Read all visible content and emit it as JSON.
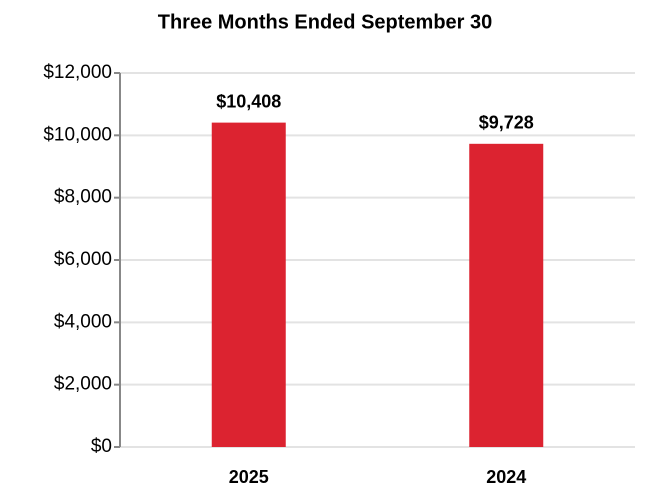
{
  "chart_data": {
    "type": "bar",
    "title": "Three Months Ended September 30",
    "categories": [
      "2025",
      "2024"
    ],
    "values": [
      10408,
      9728
    ],
    "value_labels": [
      "$10,408",
      "$9,728"
    ],
    "color": "#dc2330",
    "ylim": [
      0,
      12000
    ],
    "yticks": [
      {
        "value": 0,
        "label": "$0"
      },
      {
        "value": 2000,
        "label": "$2,000"
      },
      {
        "value": 4000,
        "label": "$4,000"
      },
      {
        "value": 6000,
        "label": "$6,000"
      },
      {
        "value": 8000,
        "label": "$8,000"
      },
      {
        "value": 10000,
        "label": "$10,000"
      },
      {
        "value": 12000,
        "label": "$12,000"
      }
    ],
    "grid": true
  }
}
